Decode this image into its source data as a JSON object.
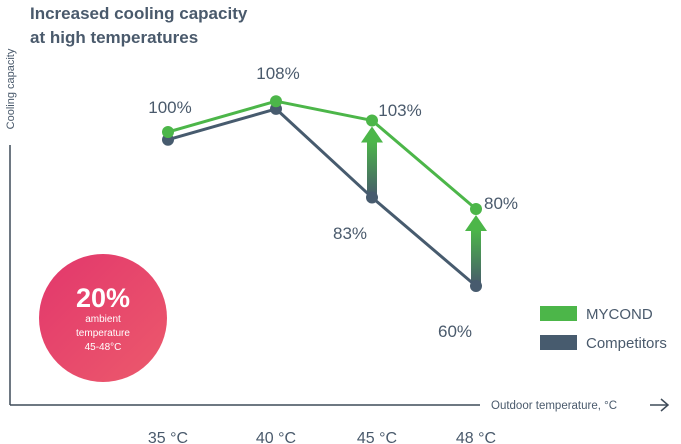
{
  "title_lines": [
    "Increased cooling capacity",
    "at high temperatures"
  ],
  "chart_data": {
    "type": "line",
    "title": "Increased cooling capacity at high temperatures",
    "xlabel": "Outdoor temperature, °C",
    "ylabel": "Cooling capacity",
    "categories": [
      "35 °C",
      "40 °C",
      "45 °C",
      "48 °C"
    ],
    "series": [
      {
        "name": "MYCOND",
        "color": "#4cb649",
        "values": [
          100,
          108,
          103,
          80
        ]
      },
      {
        "name": "Competitors",
        "color": "#475b6e",
        "values": [
          98,
          106,
          83,
          60
        ]
      }
    ],
    "data_labels": {
      "MYCOND": [
        "100%",
        "108%",
        "103%",
        "80%"
      ],
      "Competitors": [
        "",
        "",
        "83%",
        "60%"
      ]
    },
    "improvement_arrows": [
      {
        "category": "45 °C",
        "from": 83,
        "to": 103
      },
      {
        "category": "48 °C",
        "from": 60,
        "to": 80
      }
    ],
    "legend": {
      "position": "bottom-right",
      "entries": [
        "MYCOND",
        "Competitors"
      ]
    },
    "grid": false
  },
  "badge": {
    "value": "20%",
    "line1": "ambient",
    "line2": "temperature",
    "line3": "45-48°C",
    "color": "#e44a6c"
  },
  "colors": {
    "text": "#4a5a6c",
    "axis": "#3f4b59"
  }
}
